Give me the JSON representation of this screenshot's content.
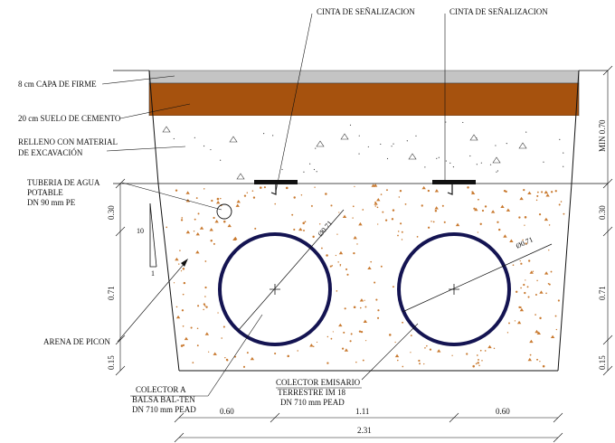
{
  "labels": {
    "cinta_left": "CINTA DE SEÑALIZACION",
    "cinta_right": "CINTA DE SEÑALIZACION",
    "capa_firme": "8 cm CAPA DE FIRME",
    "suelo_cemento": "20 cm SUELO DE CEMENTO",
    "relleno_1": "RELLENO CON  MATERIAL",
    "relleno_2": "DE EXCAVACIÓN",
    "tuberia_1": "TUBERIA DE AGUA",
    "tuberia_2": "POTABLE",
    "tuberia_3": "DN 90 mm PE",
    "arena": "ARENA DE PICON",
    "colector_a_1": "COLECTOR A",
    "colector_a_2": "BALSA BAL-TEN",
    "colector_a_3": "DN 710 mm PEAD",
    "colector_e_1": "COLECTOR EMISARIO",
    "colector_e_2": "TERRESTRE IM 18",
    "colector_e_3": "DN 710 mm PEAD"
  },
  "dimensions": {
    "left_030": "0.30",
    "left_071": "0.71",
    "left_015": "0.15",
    "right_min070": "MIN 0.70",
    "right_030": "0.30",
    "right_071": "0.71",
    "right_015": "0.15",
    "bottom_060_left": "0.60",
    "bottom_111": "1.11",
    "bottom_060_right": "0.60",
    "bottom_231": "2.31",
    "diam_left": "Ø0.71",
    "diam_right": "Ø0.71",
    "slope_10": "10",
    "slope_1": "1"
  },
  "colors": {
    "firme": "#c4c4c4",
    "suelo_cemento": "#a6520e",
    "pipe_outline": "#141452",
    "arena_dot": "#c97a30",
    "tape": "#111111"
  }
}
